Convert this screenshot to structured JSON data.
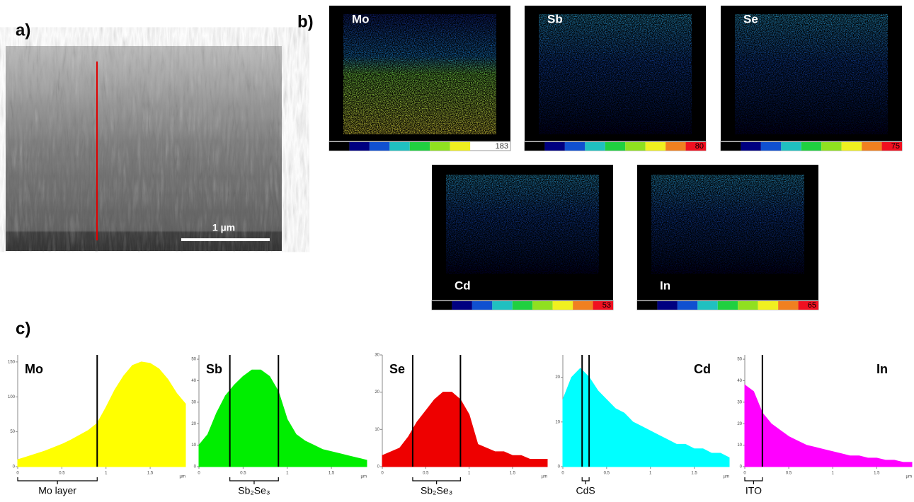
{
  "panels": {
    "a": "a)",
    "b": "b)",
    "c": "c)"
  },
  "sem": {
    "scale_label": "1 µm"
  },
  "maps": [
    {
      "element": "Mo",
      "max": 183
    },
    {
      "element": "Sb",
      "max": 80
    },
    {
      "element": "Se",
      "max": 75
    },
    {
      "element": "Cd",
      "max": 53
    },
    {
      "element": "In",
      "max": 65
    }
  ],
  "chart_data": [
    {
      "type": "area",
      "label": "Mo",
      "color": "#ffff00",
      "x_unit": "µm",
      "x": [
        0,
        0.1,
        0.2,
        0.3,
        0.4,
        0.5,
        0.6,
        0.7,
        0.8,
        0.9,
        1,
        1.1,
        1.2,
        1.3,
        1.4,
        1.5,
        1.6,
        1.7,
        1.8,
        1.9
      ],
      "values": [
        10,
        14,
        18,
        22,
        27,
        32,
        38,
        45,
        52,
        62,
        85,
        110,
        130,
        145,
        150,
        148,
        140,
        125,
        105,
        90
      ],
      "xlim": [
        0,
        1.9
      ],
      "ylim": [
        0,
        160
      ],
      "xticks": [
        0,
        0.5,
        1,
        1.5
      ],
      "yticks": [
        0,
        50,
        100,
        150
      ],
      "markers": [
        0.9
      ],
      "annotation": "Mo layer"
    },
    {
      "type": "area",
      "label": "Sb",
      "color": "#00ee00",
      "x_unit": "µm",
      "x": [
        0,
        0.1,
        0.2,
        0.3,
        0.4,
        0.5,
        0.6,
        0.7,
        0.8,
        0.9,
        1,
        1.1,
        1.2,
        1.3,
        1.4,
        1.5,
        1.6,
        1.7,
        1.8,
        1.9
      ],
      "values": [
        10,
        15,
        25,
        33,
        38,
        42,
        45,
        45,
        42,
        35,
        22,
        15,
        12,
        10,
        8,
        7,
        6,
        5,
        4,
        3
      ],
      "xlim": [
        0,
        1.9
      ],
      "ylim": [
        0,
        52
      ],
      "xticks": [
        0,
        0.5,
        1,
        1.5
      ],
      "yticks": [
        0,
        10,
        20,
        30,
        40,
        50
      ],
      "markers": [
        0.35,
        0.9
      ],
      "annotation": "Sb₂Se₃"
    },
    {
      "type": "area",
      "label": "Se",
      "color": "#ee0000",
      "x_unit": "µm",
      "x": [
        0,
        0.1,
        0.2,
        0.3,
        0.4,
        0.5,
        0.6,
        0.7,
        0.8,
        0.9,
        1,
        1.1,
        1.2,
        1.3,
        1.4,
        1.5,
        1.6,
        1.7,
        1.8,
        1.9
      ],
      "values": [
        3,
        4,
        5,
        8,
        12,
        15,
        18,
        20,
        20,
        18,
        14,
        6,
        5,
        4,
        4,
        3,
        3,
        2,
        2,
        2
      ],
      "xlim": [
        0,
        1.9
      ],
      "ylim": [
        0,
        30
      ],
      "xticks": [
        0,
        0.5,
        1,
        1.5
      ],
      "yticks": [
        0,
        10,
        20,
        30
      ],
      "markers": [
        0.35,
        0.9
      ],
      "annotation": "Sb₂Se₃"
    },
    {
      "type": "area",
      "label": "Cd",
      "color": "#00ffff",
      "x_unit": "µm",
      "x": [
        0,
        0.1,
        0.2,
        0.3,
        0.4,
        0.5,
        0.6,
        0.7,
        0.8,
        0.9,
        1,
        1.1,
        1.2,
        1.3,
        1.4,
        1.5,
        1.6,
        1.7,
        1.8,
        1.9
      ],
      "values": [
        15,
        20,
        22,
        20,
        17,
        15,
        13,
        12,
        10,
        9,
        8,
        7,
        6,
        5,
        5,
        4,
        4,
        3,
        3,
        2
      ],
      "xlim": [
        0,
        1.9
      ],
      "ylim": [
        0,
        25
      ],
      "xticks": [
        0,
        0.5,
        1,
        1.5
      ],
      "yticks": [
        0,
        10,
        20
      ],
      "markers": [
        0.22,
        0.3
      ],
      "annotation": "CdS"
    },
    {
      "type": "area",
      "label": "In",
      "color": "#ff00ff",
      "x_unit": "µm",
      "x": [
        0,
        0.1,
        0.2,
        0.3,
        0.4,
        0.5,
        0.6,
        0.7,
        0.8,
        0.9,
        1,
        1.1,
        1.2,
        1.3,
        1.4,
        1.5,
        1.6,
        1.7,
        1.8,
        1.9
      ],
      "values": [
        38,
        35,
        25,
        20,
        17,
        14,
        12,
        10,
        9,
        8,
        7,
        6,
        5,
        5,
        4,
        4,
        3,
        3,
        2,
        2
      ],
      "xlim": [
        0,
        1.9
      ],
      "ylim": [
        0,
        52
      ],
      "xticks": [
        0,
        0.5,
        1,
        1.5
      ],
      "yticks": [
        0,
        10,
        20,
        30,
        40,
        50
      ],
      "markers": [
        0.2
      ],
      "annotation": "ITO"
    }
  ]
}
